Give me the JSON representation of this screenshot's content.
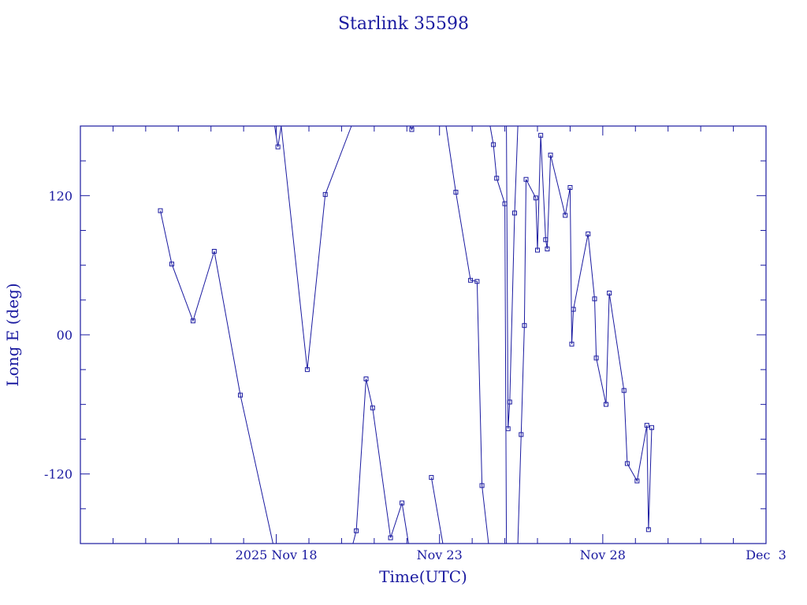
{
  "chart_data": {
    "type": "line",
    "title": "Starlink 35598",
    "xlabel": "Time(UTC)",
    "ylabel": "Long E (deg)",
    "x_unit": "days from 2025 Nov 12 00:00 UTC",
    "xlim": [
      0,
      21
    ],
    "ylim": [
      -180,
      180
    ],
    "x_ticks": [
      {
        "x": 6,
        "label": "2025 Nov 18"
      },
      {
        "x": 11,
        "label": "Nov 23"
      },
      {
        "x": 16,
        "label": "Nov 28"
      },
      {
        "x": 21,
        "label": "Dec  3"
      }
    ],
    "y_ticks": [
      {
        "y": 120,
        "label": "120"
      },
      {
        "y": 0,
        "label": "00"
      },
      {
        "y": -120,
        "label": "-120"
      }
    ],
    "series": [
      {
        "marker": "square",
        "color": "#1a1aa0",
        "points": [
          [
            2.45,
            107
          ],
          [
            2.8,
            61
          ],
          [
            3.45,
            12
          ],
          [
            4.1,
            72
          ],
          [
            4.9,
            -52
          ],
          [
            5.9,
            -180
          ],
          [
            5.95,
            180
          ],
          [
            6.05,
            162
          ],
          [
            6.15,
            180
          ],
          [
            6.95,
            -30
          ],
          [
            7.5,
            121
          ],
          [
            8.3,
            180
          ],
          [
            8.35,
            -180
          ],
          [
            8.45,
            -169
          ],
          [
            8.75,
            -38
          ],
          [
            8.95,
            -63
          ],
          [
            9.5,
            -175
          ],
          [
            9.85,
            -145
          ],
          [
            10.05,
            -180
          ],
          [
            10.1,
            180
          ],
          [
            10.15,
            177
          ],
          [
            10.2,
            180
          ],
          [
            10.75,
            -123
          ],
          [
            11.1,
            -180
          ],
          [
            11.2,
            180
          ],
          [
            11.5,
            123
          ],
          [
            11.95,
            47
          ],
          [
            12.15,
            46
          ],
          [
            12.3,
            -130
          ],
          [
            12.5,
            -180
          ],
          [
            12.55,
            180
          ],
          [
            12.65,
            164
          ],
          [
            12.75,
            135
          ],
          [
            13.0,
            113
          ],
          [
            13.05,
            -180
          ],
          [
            13.05,
            180
          ],
          [
            13.1,
            -81
          ],
          [
            13.15,
            -58
          ],
          [
            13.3,
            105
          ],
          [
            13.4,
            180
          ],
          [
            13.4,
            -180
          ],
          [
            13.5,
            -86
          ],
          [
            13.6,
            8
          ],
          [
            13.65,
            134
          ],
          [
            13.95,
            118
          ],
          [
            14.0,
            73
          ],
          [
            14.1,
            172
          ],
          [
            14.25,
            82
          ],
          [
            14.3,
            74
          ],
          [
            14.4,
            155
          ],
          [
            14.85,
            103
          ],
          [
            15.0,
            127
          ],
          [
            15.05,
            -8
          ],
          [
            15.1,
            22
          ],
          [
            15.55,
            87
          ],
          [
            15.75,
            31
          ],
          [
            15.8,
            -20
          ],
          [
            16.1,
            -60
          ],
          [
            16.2,
            36
          ],
          [
            16.65,
            -48
          ],
          [
            16.75,
            -111
          ],
          [
            17.05,
            -126
          ],
          [
            17.35,
            -78
          ],
          [
            17.4,
            -168
          ],
          [
            17.5,
            -80
          ]
        ]
      }
    ]
  }
}
